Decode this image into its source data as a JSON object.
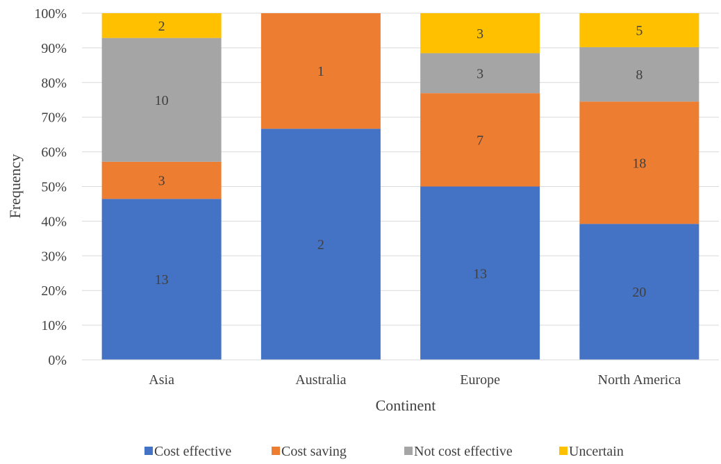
{
  "chart_data": {
    "type": "bar",
    "stacked": true,
    "normalized": true,
    "title": "",
    "xlabel": "Continent",
    "ylabel": "Frequency",
    "ylim": [
      0,
      100
    ],
    "yticks": [
      "0%",
      "10%",
      "20%",
      "30%",
      "40%",
      "50%",
      "60%",
      "70%",
      "80%",
      "90%",
      "100%"
    ],
    "categories": [
      "Asia",
      "Australia",
      "Europe",
      "North America"
    ],
    "series": [
      {
        "name": "Cost effective",
        "color": "#4472C4",
        "values": [
          13,
          2,
          13,
          20
        ]
      },
      {
        "name": "Cost saving",
        "color": "#ED7D31",
        "values": [
          3,
          1,
          7,
          18
        ]
      },
      {
        "name": "Not cost effective",
        "color": "#A5A5A5",
        "values": [
          10,
          0,
          3,
          8
        ]
      },
      {
        "name": "Uncertain",
        "color": "#FFC000",
        "values": [
          2,
          0,
          3,
          5
        ]
      }
    ],
    "data_labels": true,
    "grid": true,
    "legend_position": "bottom"
  }
}
